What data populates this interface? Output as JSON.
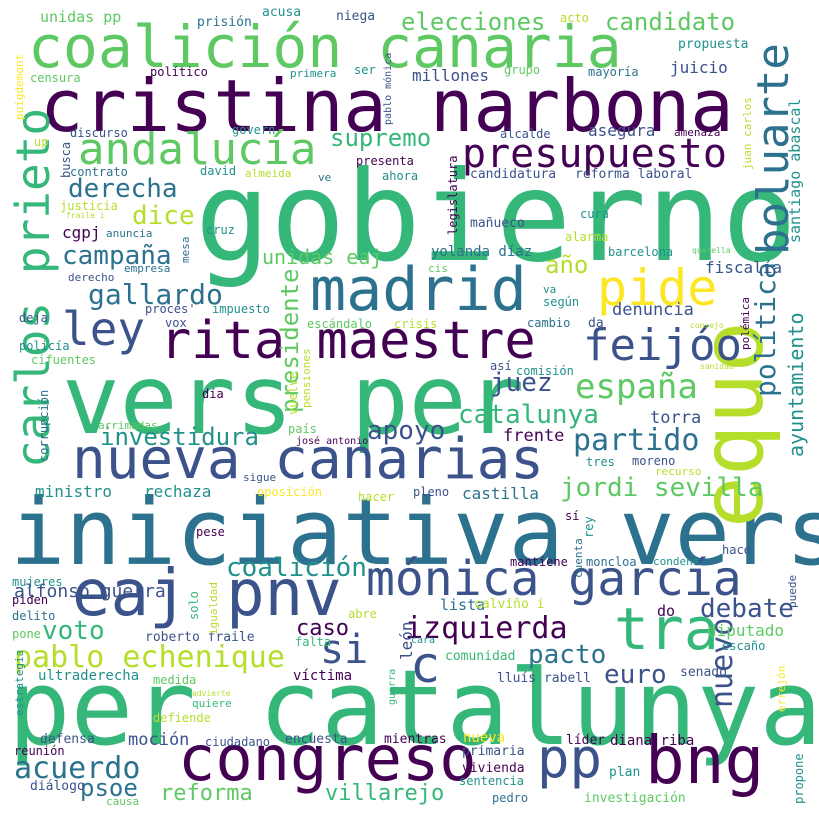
{
  "title": "word cloud",
  "palette": [
    "#440154",
    "#3b528b",
    "#21918c",
    "#5ec962",
    "#b5de2b",
    "#fde725",
    "#2c728e",
    "#35b779"
  ],
  "words": {
    "gobierno": "gobierno",
    "iniciativa_vers": "iniciativa vers",
    "per_catalunya": "per catalunya",
    "vers_per": "vers per",
    "cristina_narbona": "cristina narbona",
    "coalicion_canaria": "coalición canaria",
    "equo": "equo",
    "congreso": "congreso",
    "nueva_canarias": "nueva canarias",
    "eaj_pnv": "eaj pnv",
    "madrid": "madrid",
    "rita_maestre": "rita maestre",
    "monica_garcia": "mónica garcía",
    "bng": "bng",
    "tra": "tra",
    "pide": "pide",
    "pp": "pp",
    "presupuesto": "presupuesto",
    "andalucia": "andalucía",
    "boluarte": "boluarte",
    "feijoo": "feijóo",
    "ley": "ley",
    "carlos_prieto": "carlos prieto",
    "c": "c",
    "si": "si",
    "espana": "españa",
    "pablo_echenique": "pablo echenique",
    "jordi_sevilla": "jordi sevilla",
    "acuerdo": "acuerdo",
    "izquierda": "izquierda",
    "partido": "partido",
    "catalunya": "catalunya",
    "gallardo": "gallardo",
    "campana": "campaña",
    "derecha": "derecha",
    "debate": "debate",
    "investidura": "investidura",
    "apoyo": "apoyo",
    "coalicion": "coalición",
    "nuevo": "nuevo",
    "politica": "política",
    "ayuntamiento": "ayuntamiento",
    "presidente": "presidente",
    "villarejo": "villarejo",
    "voto": "voto",
    "pacto": "pacto",
    "euro": "euro",
    "juez": "juez",
    "supremo": "supremo",
    "elecciones": "elecciones",
    "candidato": "candidato",
    "dice": "dice",
    "reforma": "reforma",
    "psoe": "psoe",
    "unidas_eaj": "unidas eaj",
    "caso": "caso",
    "ano": "año",
    "mocion": "moción",
    "alfonso_guerra": "alfonso guerra",
    "santiago_abascal": "santiago abascal",
    "diputado": "diputado",
    "frente": "frente",
    "rechaza": "rechaza",
    "ministro": "ministro",
    "castilla": "castilla",
    "torra": "torra",
    "fiscalia": "fiscalía",
    "denuncia": "denuncia",
    "asegura": "asegura",
    "juicio": "juicio",
    "millones": "millones",
    "propuesta": "propuesta",
    "candidatura": "candidatura",
    "reforma_laboral": "reforma laboral",
    "cgpj": "cgpj",
    "yolanda_diaz": "yolanda díaz",
    "lista": "lista",
    "mantiene": "mantiene",
    "leon": "león",
    "calvino_i": "calviño i",
    "do": "do",
    "escano": "escaño",
    "diana_riba": "diana riba",
    "comunidad": "comunidad",
    "lluis_rabell": "lluís rabell",
    "ultraderecha": "ultraderecha",
    "victima": "víctima",
    "senado": "senado",
    "roberto_fraile": "roberto fraile",
    "falta": "falta",
    "nueva": "nueva",
    "lider": "líder",
    "primaria": "primaria",
    "vivienda": "vivienda",
    "sentencia": "sentencia",
    "mientras": "mientras",
    "encuesta": "encuesta",
    "ciudadano": "ciudadano",
    "defensa": "defensa",
    "reunion": "reunión",
    "dialogo": "diálogo",
    "causa": "causa",
    "pedro": "pedro",
    "investigacion": "investigación",
    "plan": "plan",
    "propone": "propone",
    "errejon": "errejón",
    "hace": "hace",
    "puede": "puede",
    "condena": "condena",
    "moncloa": "moncloa",
    "cuenta": "cuenta",
    "rey": "rey",
    "si_accent": "sí",
    "hacer": "hacer",
    "pleno": "pleno",
    "oposicion": "oposición",
    "sigue": "sigue",
    "pais": "país",
    "jose_antonio": "josé antonio",
    "arrimadas": "arrimadas",
    "corrupcion": "corrupción",
    "dia": "día",
    "vuelve": "vuelve",
    "pensiones": "pensiones",
    "comision": "comisión",
    "asi": "así",
    "tres": "tres",
    "moreno": "moreno",
    "recurso": "recurso",
    "escandalo": "escándalo",
    "crisis": "crisis",
    "da": "da",
    "cambio": "cambio",
    "vox": "vox",
    "proces": "procés'",
    "impuesto": "impuesto",
    "deja": "deja",
    "policia": "policía",
    "cifuentes": "cifuentes",
    "segun": "según",
    "va": "va",
    "cis": "cis",
    "barcelona": "barcelona",
    "querella": "querella",
    "consejo": "consejo",
    "sanidad": "sanidad",
    "polemica": "polémica",
    "alarma": "alarma",
    "cura": "cura",
    "manueco": "mañueco",
    "legislatura": "legislatura",
    "cruz": "cruz",
    "anuncia": "anuncia",
    "mesa": "mesa",
    "empresa": "empresa",
    "derecho": "derecho",
    "justicia": "justicia",
    "fraile_i": "fraile i",
    "contrato": "contrato",
    "david": "david",
    "almeida": "almeida",
    "ve": "ve",
    "ahora": "ahora",
    "presenta": "presenta",
    "busca": "busca",
    "up": "up",
    "discurso": "discurso",
    "govern": "govern",
    "alcalde": "alcalde",
    "amenaza": "amenaza",
    "juan_carlos": "juan carlos",
    "puigdemont": "puigdemont",
    "censura": "censura",
    "politico": "político",
    "primera": "primera",
    "pablo_monica": "pablo mónica",
    "ser": "ser",
    "grupo": "grupo",
    "mayoria": "mayoría",
    "unidas_pp": "unidas pp",
    "prision": "prisión",
    "acusa": "acusa",
    "niega": "niega",
    "acto": "acto",
    "estrategia": "estrategia",
    "advierte": "advierte",
    "quiere": "quiere",
    "defiende": "defiende",
    "medida": "medida",
    "guerra": "guerra",
    "cara": "cara",
    "abre": "abre",
    "solo": "solo",
    "igualdad": "igualdad",
    "pese": "pese",
    "mujeres": "mujeres",
    "piden": "piden",
    "delito": "delito",
    "pone": "pone"
  }
}
